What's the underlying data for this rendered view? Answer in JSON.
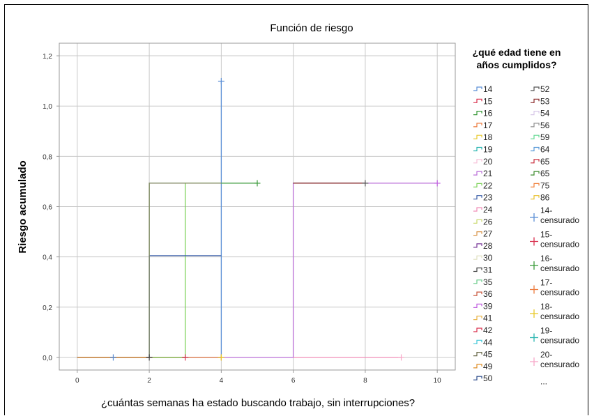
{
  "chart_data": {
    "type": "line",
    "title": "Función de riesgo",
    "xlabel": "¿cuántas semanas ha estado buscando trabajo, sin interrupciones?",
    "ylabel": "Riesgo acumulado",
    "xlim": [
      -0.5,
      10.5
    ],
    "ylim": [
      -0.05,
      1.25
    ],
    "x_ticks": [
      0,
      2,
      4,
      6,
      8,
      10
    ],
    "x_tick_labels": [
      "0",
      "2",
      "4",
      "6",
      "8",
      "10"
    ],
    "y_ticks": [
      0.0,
      0.2,
      0.4,
      0.6,
      0.8,
      1.0,
      1.2
    ],
    "y_tick_labels": [
      "0,0",
      "0,2",
      "0,4",
      "0,6",
      "0,8",
      "1,0",
      "1,2"
    ],
    "grid": true,
    "legend_title": "¿qué edad tiene en años cumplidos?",
    "legend_placement": "right",
    "series": [
      {
        "name": "14",
        "color": "#5b8fd6",
        "steps": [
          [
            0,
            0
          ],
          [
            4,
            0
          ],
          [
            4,
            0.693
          ],
          [
            4,
            1.099
          ]
        ]
      },
      {
        "name": "15",
        "color": "#d9304e",
        "steps": [
          [
            0,
            0
          ],
          [
            3,
            0
          ]
        ]
      },
      {
        "name": "16",
        "color": "#3a9a3a",
        "steps": [
          [
            0,
            0
          ],
          [
            2,
            0
          ],
          [
            2,
            0.693
          ],
          [
            5,
            0.693
          ]
        ]
      },
      {
        "name": "17",
        "color": "#ec7a3c",
        "steps": [
          [
            0,
            0
          ],
          [
            4,
            0
          ]
        ]
      },
      {
        "name": "21",
        "color": "#bb6fd8",
        "steps": [
          [
            4,
            0
          ],
          [
            6,
            0
          ],
          [
            6,
            0.693
          ],
          [
            10,
            0.693
          ]
        ]
      },
      {
        "name": "22",
        "color": "#7fd35a",
        "steps": [
          [
            2,
            0
          ],
          [
            3,
            0
          ],
          [
            3,
            0.693
          ],
          [
            4,
            0.693
          ]
        ]
      },
      {
        "name": "23",
        "color": "#3a5ea8",
        "steps": [
          [
            2,
            0
          ],
          [
            2,
            0.405
          ],
          [
            4,
            0.405
          ]
        ]
      },
      {
        "name": "24",
        "color": "#f08db8",
        "steps": [
          [
            6,
            0
          ],
          [
            9,
            0
          ]
        ]
      },
      {
        "name": "27",
        "color": "#d9954a",
        "steps": [
          [
            0,
            0
          ],
          [
            2,
            0
          ]
        ]
      },
      {
        "name": "45",
        "color": "#8a8a6a",
        "steps": [
          [
            2,
            0
          ],
          [
            2,
            0.693
          ],
          [
            4,
            0.693
          ]
        ]
      },
      {
        "name": "52",
        "color": "#555555",
        "steps": [
          [
            6,
            0.693
          ],
          [
            8,
            0.693
          ]
        ]
      },
      {
        "name": "53",
        "color": "#8b2a2a",
        "steps": [
          [
            6,
            0.693
          ],
          [
            8,
            0.693
          ]
        ]
      }
    ],
    "censored_points": [
      {
        "name": "14-censurado",
        "color": "#5b8fd6",
        "x": 1,
        "y": 0
      },
      {
        "name": "14-censurado",
        "color": "#5b8fd6",
        "x": 4,
        "y": 1.099
      },
      {
        "name": "15-censurado",
        "color": "#d9304e",
        "x": 3,
        "y": 0
      },
      {
        "name": "16-censurado",
        "color": "#3a9a3a",
        "x": 5,
        "y": 0.693
      },
      {
        "name": "17-censurado",
        "color": "#ec7a3c",
        "x": 4,
        "y": 0
      },
      {
        "name": "18-censurado",
        "color": "#e8c92a",
        "x": 4,
        "y": 0
      },
      {
        "name": "20-censurado",
        "color": "#f7a8c8",
        "x": 9,
        "y": 0
      },
      {
        "name": "31-censurado",
        "color": "#444444",
        "x": 2,
        "y": 0
      },
      {
        "name": "52-censurado",
        "color": "#555555",
        "x": 8,
        "y": 0.693
      },
      {
        "name": "39-censurado",
        "color": "#c060e0",
        "x": 10,
        "y": 0.693
      }
    ],
    "legend": {
      "line_entries": [
        {
          "label": "14",
          "color": "#5b8fd6"
        },
        {
          "label": "15",
          "color": "#d9304e"
        },
        {
          "label": "16",
          "color": "#3a9a3a"
        },
        {
          "label": "17",
          "color": "#ec7a3c"
        },
        {
          "label": "18",
          "color": "#e8c92a"
        },
        {
          "label": "19",
          "color": "#2ab5b0"
        },
        {
          "label": "20",
          "color": "#f7c0d8"
        },
        {
          "label": "21",
          "color": "#bb6fd8"
        },
        {
          "label": "22",
          "color": "#7fd35a"
        },
        {
          "label": "23",
          "color": "#3a5ea8"
        },
        {
          "label": "24",
          "color": "#f08db8"
        },
        {
          "label": "26",
          "color": "#c8d86a"
        },
        {
          "label": "27",
          "color": "#d9954a"
        },
        {
          "label": "28",
          "color": "#7a3a9a"
        },
        {
          "label": "30",
          "color": "#e0e0c0"
        },
        {
          "label": "31",
          "color": "#444444"
        },
        {
          "label": "35",
          "color": "#6acb8a"
        },
        {
          "label": "36",
          "color": "#c8563c"
        },
        {
          "label": "39",
          "color": "#c060e0"
        },
        {
          "label": "41",
          "color": "#e8b040"
        },
        {
          "label": "42",
          "color": "#d9304e"
        },
        {
          "label": "44",
          "color": "#40c8d8"
        },
        {
          "label": "45",
          "color": "#6a6a4a"
        },
        {
          "label": "49",
          "color": "#e0902a"
        },
        {
          "label": "50",
          "color": "#2a4a8a"
        },
        {
          "label": "52",
          "color": "#555555"
        },
        {
          "label": "53",
          "color": "#8b2a2a"
        },
        {
          "label": "54",
          "color": "#d8c8e8"
        },
        {
          "label": "56",
          "color": "#909090"
        },
        {
          "label": "59",
          "color": "#60d890"
        },
        {
          "label": "64",
          "color": "#5a9ad8"
        },
        {
          "label": "65",
          "color": "#c82a3a"
        },
        {
          "label": "65",
          "color": "#3a8a2a"
        },
        {
          "label": "75",
          "color": "#f0803a"
        },
        {
          "label": "86",
          "color": "#e8c02a"
        }
      ],
      "censored_entries": [
        {
          "label": "14-censurado",
          "color": "#5b8fd6"
        },
        {
          "label": "15-censurado",
          "color": "#d9304e"
        },
        {
          "label": "16-censurado",
          "color": "#3a9a3a"
        },
        {
          "label": "17-censurado",
          "color": "#ec7a3c"
        },
        {
          "label": "18-censurado",
          "color": "#e8c92a"
        },
        {
          "label": "19-censurado",
          "color": "#2ab5b0"
        },
        {
          "label": "20-censurado",
          "color": "#f7a8c8"
        }
      ],
      "more_label": "..."
    }
  }
}
